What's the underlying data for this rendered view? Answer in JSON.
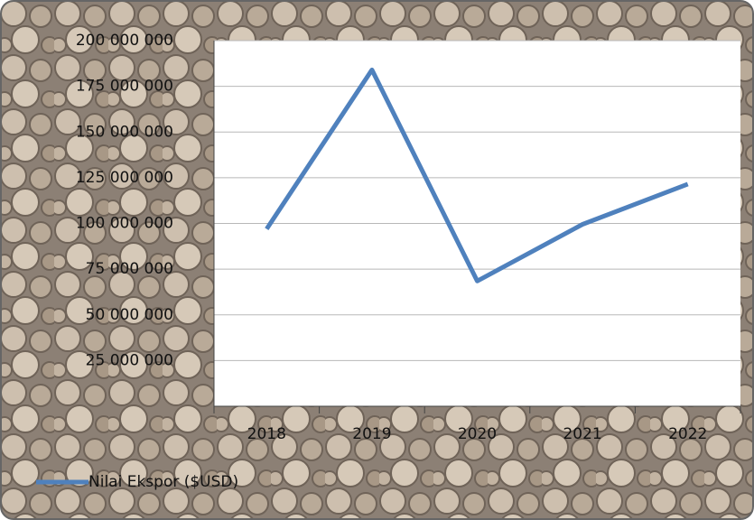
{
  "chart_data": {
    "type": "line",
    "categories": [
      "2018",
      "2019",
      "2020",
      "2021",
      "2022"
    ],
    "series": [
      {
        "name": "Nilai Ekspor ($USD)",
        "color": "#4f81bd",
        "values": [
          97000000,
          184000000,
          68500000,
          99500000,
          121500000
        ]
      }
    ],
    "ylim": [
      0,
      200000000
    ],
    "yticks": [
      {
        "value": 25000000,
        "label": "25 000 000"
      },
      {
        "value": 50000000,
        "label": "50 000 000"
      },
      {
        "value": 75000000,
        "label": "75 000 000"
      },
      {
        "value": 100000000,
        "label": "100 000 000"
      },
      {
        "value": 125000000,
        "label": "125 000 000"
      },
      {
        "value": 150000000,
        "label": "150 000 000"
      },
      {
        "value": 175000000,
        "label": "175 000 000"
      },
      {
        "value": 200000000,
        "label": "200 000 000"
      }
    ],
    "grid": true,
    "legend": "bottom-left"
  }
}
